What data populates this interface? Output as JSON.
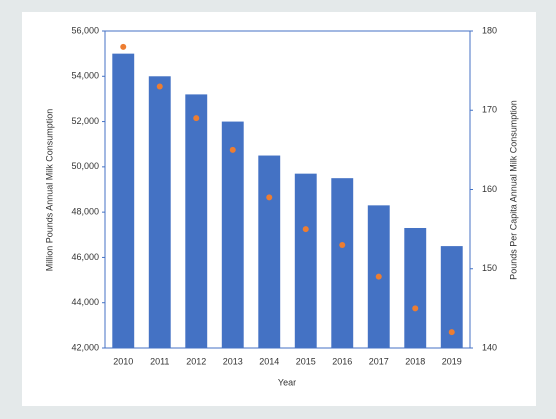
{
  "chart_data": {
    "type": "bar",
    "x_label": "Year",
    "y_label": "Million Pounds Annual Milk Consumption",
    "y2_label": "Pounds Per Capita Annual Milk Consumption",
    "categories": [
      "2010",
      "2011",
      "2012",
      "2013",
      "2014",
      "2015",
      "2016",
      "2017",
      "2018",
      "2019"
    ],
    "series": [
      {
        "type": "bar",
        "color": "#4472c4",
        "values": [
          55000,
          54000,
          53200,
          52000,
          50500,
          49700,
          49500,
          48300,
          47300,
          46500
        ]
      },
      {
        "type": "scatter",
        "color": "#ed7d31",
        "axis": "y2",
        "values": [
          178,
          173,
          169,
          165,
          159,
          155,
          153,
          149,
          145,
          142
        ]
      }
    ],
    "ylim": [
      42000,
      56000
    ],
    "yticks": [
      {
        "value": 42000,
        "label": "42,000"
      },
      {
        "value": 44000,
        "label": "44,000"
      },
      {
        "value": 46000,
        "label": "46,000"
      },
      {
        "value": 48000,
        "label": "48,000"
      },
      {
        "value": 50000,
        "label": "50,000"
      },
      {
        "value": 52000,
        "label": "52,000"
      },
      {
        "value": 54000,
        "label": "54,000"
      },
      {
        "value": 56000,
        "label": "56,000"
      }
    ],
    "y2lim": [
      140,
      180
    ],
    "y2ticks": [
      140,
      150,
      160,
      170,
      180
    ]
  }
}
